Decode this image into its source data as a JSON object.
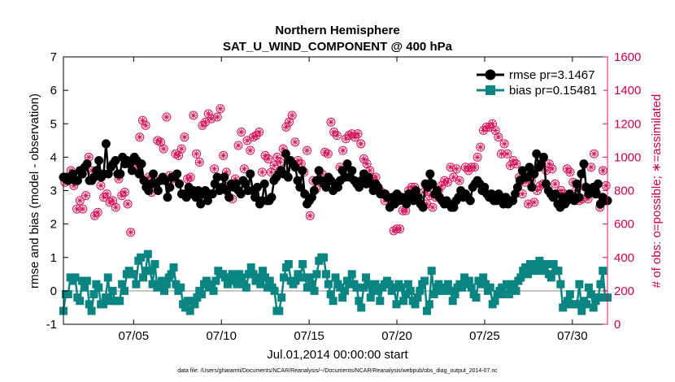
{
  "chart_data": {
    "type": "line",
    "title": "Northern Hemisphere",
    "subtitle": "SAT_U_WIND_COMPONENT @ 400 hPa",
    "xlabel": "Jul.01,2014 00:00:00 start",
    "ylabel": "rmse and bias (model - observation)",
    "y2label": "# of obs: o=possible; ∗=assimilated",
    "xlim": [
      1,
      32
    ],
    "ylim": [
      -1,
      7
    ],
    "y2lim": [
      0,
      1600
    ],
    "x_ticks": [
      5,
      10,
      15,
      20,
      25,
      30
    ],
    "x_tick_labels": [
      "07/05",
      "07/10",
      "07/15",
      "07/20",
      "07/25",
      "07/30"
    ],
    "y_ticks": [
      -1,
      0,
      1,
      2,
      3,
      4,
      5,
      6,
      7
    ],
    "y_tick_labels": [
      "-1",
      "0",
      "1",
      "2",
      "3",
      "4",
      "5",
      "6",
      "7"
    ],
    "y2_ticks": [
      0,
      200,
      400,
      600,
      800,
      1000,
      1200,
      1400,
      1600
    ],
    "y2_tick_labels": [
      "0",
      "200",
      "400",
      "600",
      "800",
      "1000",
      "1200",
      "1400",
      "1600"
    ],
    "legend_position": "top-right",
    "series": [
      {
        "name": "rmse pr=3.1467",
        "color": "#000000",
        "marker": "circle",
        "axis": "left",
        "values": [
          3.4,
          3.4,
          3.3,
          3.4,
          3.5,
          3.3,
          3.3,
          3.6,
          3.5,
          3.7,
          3.8,
          3.3,
          3.3,
          3.4,
          3.6,
          3.9,
          3.4,
          3.5,
          4.4,
          3.5,
          3.7,
          3.8,
          3.9,
          3.5,
          3.5,
          4.0,
          3.8,
          3.9,
          3.8,
          3.6,
          4.0,
          3.9,
          3.5,
          3.8,
          3.3,
          3.1,
          3.0,
          3.2,
          3.5,
          3.2,
          3.0,
          3.3,
          3.4,
          3.3,
          2.8,
          3.1,
          3.4,
          3.4,
          3.5,
          3.2,
          2.9,
          2.9,
          2.8,
          3.1,
          2.9,
          3.0,
          2.8,
          3.0,
          2.6,
          2.9,
          3.0,
          2.7,
          2.9,
          2.9,
          3.2,
          3.4,
          3.0,
          3.1,
          3.4,
          3.0,
          2.8,
          3.2,
          3.1,
          3.2,
          3.0,
          2.9,
          3.3,
          3.2,
          3.0,
          3.5,
          3.0,
          2.8,
          3.1,
          2.6,
          2.7,
          3.2,
          2.7,
          2.7,
          2.8,
          3.3,
          3.4,
          3.5,
          3.6,
          3.5,
          4.1,
          3.4,
          3.9,
          3.8,
          3.7,
          3.3,
          3.1,
          3.6,
          2.9,
          2.6,
          2.7,
          2.8,
          3.0,
          3.3,
          3.6,
          3.3,
          3.2,
          3.1,
          3.4,
          3.3,
          3.0,
          3.2,
          3.1,
          3.3,
          3.6,
          3.4,
          3.8,
          3.4,
          3.6,
          3.3,
          3.2,
          3.1,
          3.3,
          3.5,
          3.2,
          3.4,
          3.2,
          3.0,
          3.2,
          3.1,
          2.9,
          2.9,
          2.9,
          2.8,
          2.5,
          2.8,
          2.6,
          2.9,
          2.7,
          2.8,
          2.7,
          2.6,
          2.9,
          2.8,
          2.7,
          3.0,
          2.8,
          2.6,
          2.5,
          3.2,
          3.1,
          3.5,
          3.2,
          2.9,
          3.0,
          2.8,
          2.7,
          2.6,
          2.7,
          2.6,
          2.5,
          2.5,
          2.7,
          2.8,
          3.0,
          2.8,
          2.9,
          2.8,
          2.7,
          3.1,
          3.2,
          3.3,
          3.2,
          3.0,
          3.1,
          2.9,
          2.8,
          2.9,
          2.7,
          2.7,
          2.9,
          2.7,
          2.6,
          2.8,
          2.6,
          2.7,
          2.7,
          2.9,
          3.1,
          3.3,
          3.6,
          3.4,
          3.4,
          3.7,
          3.1,
          3.5,
          4.1,
          3.7,
          3.8,
          4.0,
          3.2,
          3.0,
          2.9,
          2.8,
          2.9,
          2.6,
          2.5,
          2.8,
          2.6,
          2.7,
          2.9,
          2.8,
          2.7,
          3.2,
          2.8,
          3.5,
          3.8,
          3.1,
          2.9,
          3.0,
          3.1,
          2.9,
          3.2,
          2.6,
          2.8,
          2.7,
          2.7
        ]
      },
      {
        "name": "bias pr=0.15481",
        "color": "#0b8582",
        "marker": "square",
        "axis": "left",
        "values": [
          -0.6,
          -0.1,
          -0.1,
          0.4,
          0.3,
          0.4,
          -0.2,
          -0.3,
          0.3,
          0.1,
          0.3,
          -0.4,
          -0.6,
          -0.1,
          0.2,
          0.1,
          -0.4,
          -0.4,
          -0.2,
          0.4,
          -0.3,
          0.0,
          -0.3,
          -0.3,
          -0.3,
          0.2,
          0.0,
          0.5,
          0.6,
          0.5,
          0.5,
          0.2,
          0.9,
          1.0,
          0.4,
          0.6,
          1.1,
          0.6,
          0.2,
          0.8,
          0.1,
          0.2,
          0.3,
          0.0,
          0.2,
          0.4,
          0.5,
          0.7,
          0.2,
          0.0,
          0.1,
          -0.4,
          -0.5,
          -0.3,
          -0.6,
          -0.3,
          -0.4,
          -0.2,
          0.0,
          -0.1,
          0.2,
          0.3,
          0.1,
          0.2,
          0.0,
          0.3,
          0.6,
          0.5,
          0.5,
          0.4,
          0.2,
          0.4,
          0.5,
          0.3,
          0.2,
          0.5,
          0.4,
          0.2,
          0.1,
          0.5,
          0.7,
          0.5,
          0.3,
          0.4,
          0.2,
          0.6,
          0.4,
          0.1,
          0.3,
          0.1,
          0.0,
          -0.6,
          -0.6,
          -0.2,
          0.4,
          0.7,
          0.8,
          0.3,
          0.2,
          0.3,
          0.5,
          0.4,
          0.8,
          0.4,
          0.1,
          0.4,
          0.2,
          0.0,
          0.5,
          0.9,
          1.0,
          1.0,
          0.5,
          0.2,
          -0.1,
          -0.3,
          0.4,
          0.2,
          0.1,
          -0.2,
          0.0,
          0.3,
          0.2,
          0.5,
          0.2,
          0.1,
          -0.3,
          -0.5,
          0.1,
          0.4,
          0.2,
          -0.2,
          0.0,
          0.2,
          0.0,
          -0.3,
          0.1,
          0.2,
          0.3,
          0.2,
          0.0,
          0.1,
          -0.4,
          0.2,
          0.1,
          -0.3,
          -0.1,
          0.2,
          0.0,
          -0.3,
          -0.4,
          -0.2,
          0.0,
          0.2,
          0.3,
          -0.6,
          -0.4,
          0.6,
          -0.1,
          0.1,
          0.2,
          0.0,
          0.0,
          0.1,
          0.2,
          0.0,
          -0.3,
          -0.1,
          0.1,
          0.2,
          0.1,
          0.4,
          0.2,
          0.3,
          0.1,
          -0.1,
          -0.2,
          0.3,
          0.2,
          0.4,
          0.2,
          0.0,
          0.1,
          -0.4,
          -0.3,
          -0.1,
          0.0,
          0.1,
          -0.1,
          0.2,
          -0.1,
          0.1,
          0.2,
          0.0,
          0.3,
          0.4,
          0.6,
          0.7,
          0.5,
          0.8,
          0.7,
          0.6,
          0.8,
          0.9,
          0.6,
          0.7,
          0.8,
          0.5,
          0.4,
          0.8,
          0.6,
          0.6,
          0.2,
          -0.5,
          -0.4,
          -0.3,
          -0.1,
          -0.4,
          -0.4,
          -0.4,
          0.2,
          -0.6,
          -0.3,
          -0.4,
          0.1,
          -0.1,
          -0.5,
          -0.3,
          -0.2,
          0.2,
          0.6,
          -0.2,
          -0.2
        ]
      },
      {
        "name": "obs possible",
        "color": "#d4145a",
        "marker": "open-circle",
        "axis": "right",
        "values": [
          850,
          860,
          920,
          830,
          690,
          740,
          690,
          770,
          1000,
          920,
          650,
          670,
          830,
          760,
          780,
          730,
          740,
          700,
          870,
          770,
          790,
          720,
          550,
          980,
          950,
          1120,
          1220,
          1190,
          880,
          790,
          860,
          1100,
          1090,
          1050,
          1240,
          890,
          870,
          1020,
          1010,
          1050,
          1120,
          870,
          880,
          1250,
          1020,
          970,
          1190,
          1210,
          1260,
          1230,
          930,
          1240,
          1290,
          1010,
          910,
          830,
          750,
          870,
          1070,
          1150,
          930,
          1100,
          1040,
          1120,
          1130,
          1150,
          910,
          1010,
          990,
          910,
          950,
          1000,
          970,
          1050,
          1180,
          1210,
          1250,
          1090,
          980,
          960,
          910,
          1040,
          650,
          860,
          810,
          860,
          900,
          1030,
          1020,
          1210,
          1150,
          1130,
          940,
          1040,
          1110,
          1130,
          1140,
          1120,
          1140,
          1080,
          990,
          960,
          920,
          870,
          880,
          810,
          790,
          740,
          760,
          710,
          560,
          570,
          570,
          680,
          680,
          800,
          820,
          820,
          760,
          720,
          790,
          720,
          770,
          700,
          760,
          800,
          830,
          860,
          850,
          940,
          880,
          930,
          860,
          770,
          940,
          920,
          940,
          940,
          1000,
          1060,
          1160,
          1180,
          1180,
          1200,
          1160,
          1120,
          1020,
          1080,
          1020,
          950,
          980,
          960,
          880,
          780,
          850,
          720,
          860,
          730,
          800,
          830,
          840,
          920,
          960,
          930,
          840,
          780,
          800,
          780,
          930,
          910,
          850,
          800,
          740,
          750,
          820,
          750,
          940,
          1020,
          780,
          700,
          920,
          830
        ]
      },
      {
        "name": "obs assimilated",
        "color": "#d4145a",
        "marker": "asterisk",
        "axis": "right",
        "values": [
          850,
          860,
          920,
          830,
          690,
          740,
          690,
          770,
          1000,
          920,
          650,
          670,
          830,
          760,
          780,
          730,
          740,
          700,
          870,
          770,
          790,
          720,
          550,
          980,
          950,
          1120,
          1220,
          1190,
          880,
          790,
          860,
          1100,
          1090,
          1050,
          1240,
          890,
          870,
          1020,
          1010,
          1050,
          1120,
          870,
          880,
          1250,
          1020,
          970,
          1190,
          1210,
          1260,
          1230,
          930,
          1240,
          1290,
          1010,
          910,
          830,
          750,
          870,
          1070,
          1150,
          930,
          1100,
          1040,
          1120,
          1130,
          1150,
          910,
          1010,
          990,
          910,
          950,
          1000,
          970,
          1050,
          1180,
          1210,
          1250,
          1090,
          980,
          960,
          910,
          1040,
          650,
          860,
          810,
          860,
          900,
          1030,
          1020,
          1210,
          1150,
          1130,
          940,
          1040,
          1110,
          1130,
          1140,
          1120,
          1140,
          1080,
          990,
          960,
          920,
          870,
          880,
          810,
          790,
          740,
          760,
          710,
          560,
          570,
          570,
          680,
          680,
          800,
          820,
          820,
          760,
          720,
          790,
          720,
          770,
          700,
          760,
          800,
          830,
          860,
          850,
          940,
          880,
          930,
          860,
          770,
          940,
          920,
          940,
          940,
          1000,
          1060,
          1160,
          1180,
          1180,
          1200,
          1160,
          1120,
          1020,
          1080,
          1020,
          950,
          980,
          960,
          880,
          780,
          850,
          720,
          860,
          730,
          800,
          830,
          840,
          920,
          960,
          930,
          840,
          780,
          800,
          780,
          930,
          910,
          850,
          800,
          740,
          750,
          820,
          750,
          940,
          1020,
          780,
          700,
          920,
          830
        ]
      }
    ]
  },
  "legend": {
    "rmse_label": "rmse pr=3.1467",
    "bias_label": "bias pr=0.15481"
  },
  "footer": {
    "data_file": "data file: /Users/gharamti/Documents/NCAR/Reanalysis/~/Documents/NCAR/Reanalysis/webpub/obs_diag_output_2014-07.nc"
  },
  "colors": {
    "rmse": "#000000",
    "bias": "#0b8582",
    "obs": "#d4145a",
    "zero_line": "#b3b3b3"
  }
}
